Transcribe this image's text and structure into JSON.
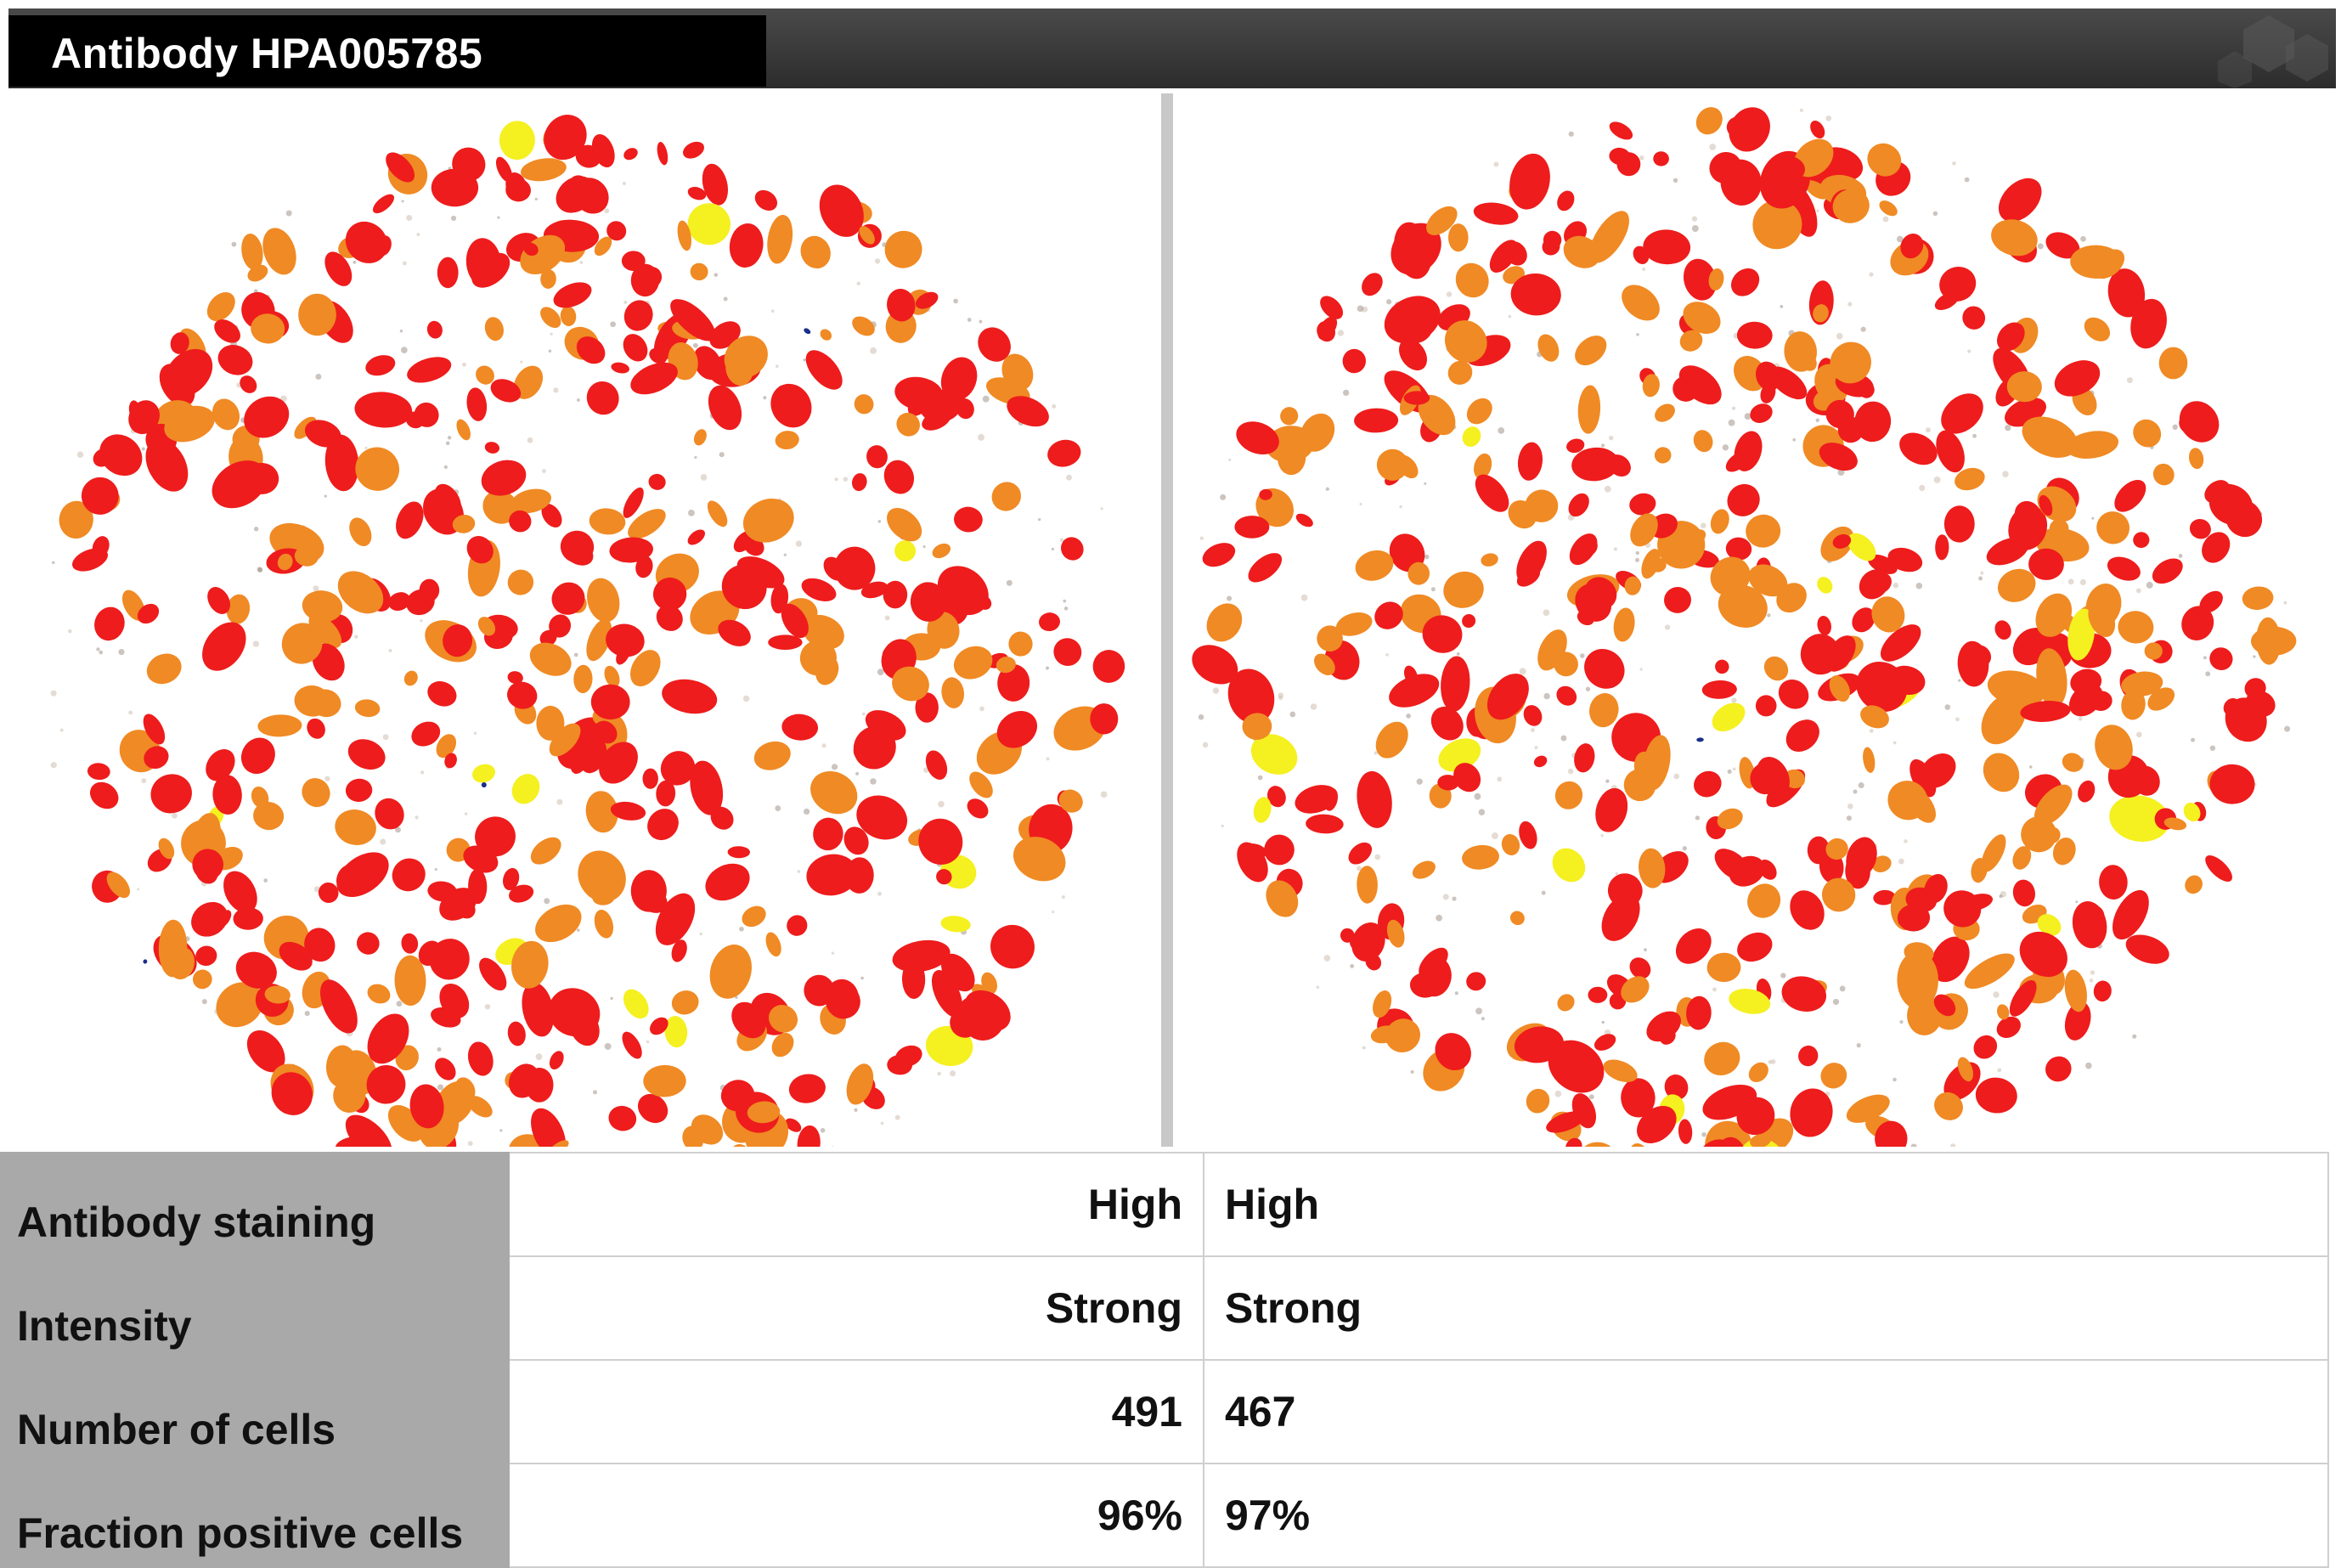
{
  "header": {
    "title": "Antibody HPA005785",
    "logo_icon": "hexagon-logo-icon"
  },
  "colors": {
    "strong_stain": "#ee1c1c",
    "moderate_stain": "#f08a24",
    "weak_stain": "#f5f020",
    "negative_stain": "#1a2f8a",
    "label_column_bg": "#a9a9a9",
    "header_bg": "#000000"
  },
  "panels": [
    {
      "name": "left-tissue-core",
      "cells": "491"
    },
    {
      "name": "right-tissue-core",
      "cells": "467"
    }
  ],
  "table": {
    "rows": [
      {
        "label": "Antibody staining",
        "left": "High",
        "right": "High"
      },
      {
        "label": "Intensity",
        "left": "Strong",
        "right": "Strong"
      },
      {
        "label": "Number of cells",
        "left": "491",
        "right": "467"
      },
      {
        "label": "Fraction positive cells",
        "left": "96%",
        "right": "97%"
      }
    ]
  }
}
